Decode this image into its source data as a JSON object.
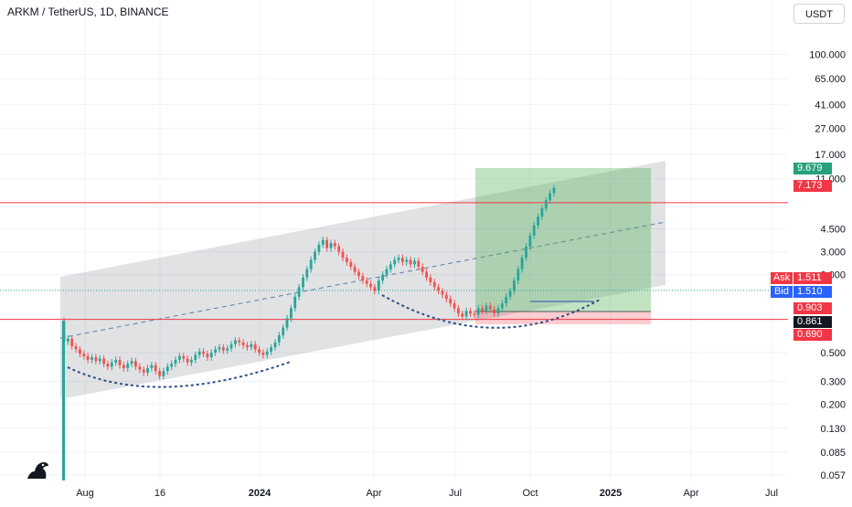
{
  "header": {
    "symbol_title": "ARKM / TetherUS, 1D, BINANCE",
    "currency": "USDT"
  },
  "price_axis": {
    "labels": [
      "100.000",
      "65.000",
      "41.000",
      "27.000",
      "17.000",
      "11.000",
      "4.500",
      "3.000",
      "2.000",
      "0.500",
      "0.300",
      "0.200",
      "0.130",
      "0.085",
      "0.057"
    ]
  },
  "time_axis": {
    "labels": [
      {
        "text": "Aug",
        "bold": false
      },
      {
        "text": "16",
        "bold": false
      },
      {
        "text": "2024",
        "bold": true
      },
      {
        "text": "Apr",
        "bold": false
      },
      {
        "text": "Jul",
        "bold": false
      },
      {
        "text": "Oct",
        "bold": false
      },
      {
        "text": "2025",
        "bold": true
      },
      {
        "text": "Apr",
        "bold": false
      },
      {
        "text": "Jul",
        "bold": false
      }
    ]
  },
  "price_tags": {
    "target": {
      "text": "9.679",
      "color": "#26a17b"
    },
    "resistance": {
      "text": "7.173",
      "color": "#f23645"
    },
    "ask_label": "Ask",
    "ask": {
      "text": "1.511",
      "color": "#f23645"
    },
    "bid_label": "Bid",
    "bid": {
      "text": "1.510",
      "color": "#2962ff"
    },
    "support": {
      "text": "0.903",
      "color": "#f23645"
    },
    "last": {
      "text": "0.861",
      "color": "#131722"
    },
    "stop": {
      "text": "0.690",
      "color": "#f23645"
    }
  },
  "chart_data": {
    "type": "candlestick",
    "title": "ARKM / TetherUS, 1D, BINANCE",
    "yscale": "log",
    "ylim": [
      0.05,
      100
    ],
    "x_ticks": [
      "Aug",
      "16",
      "2024",
      "Apr",
      "Jul",
      "Oct",
      "2025",
      "Apr",
      "Jul"
    ],
    "y_ticks": [
      100,
      65,
      41,
      27,
      17,
      11,
      4.5,
      3,
      2,
      0.5,
      0.3,
      0.2,
      0.13,
      0.085,
      0.057
    ],
    "horizontal_lines": [
      7.173,
      0.903
    ],
    "position": {
      "target": 9.679,
      "entry": 0.861,
      "stop": 0.69
    },
    "close_series": [
      0.61,
      0.64,
      0.56,
      0.53,
      0.49,
      0.47,
      0.44,
      0.46,
      0.43,
      0.45,
      0.41,
      0.39,
      0.42,
      0.44,
      0.4,
      0.38,
      0.41,
      0.43,
      0.39,
      0.37,
      0.35,
      0.38,
      0.4,
      0.36,
      0.33,
      0.36,
      0.39,
      0.41,
      0.44,
      0.47,
      0.45,
      0.42,
      0.44,
      0.48,
      0.51,
      0.49,
      0.46,
      0.5,
      0.53,
      0.55,
      0.52,
      0.54,
      0.58,
      0.62,
      0.6,
      0.57,
      0.55,
      0.58,
      0.53,
      0.5,
      0.48,
      0.51,
      0.55,
      0.6,
      0.68,
      0.78,
      0.92,
      1.1,
      1.35,
      1.6,
      1.9,
      2.2,
      2.6,
      3.0,
      3.4,
      3.7,
      3.2,
      3.5,
      3.3,
      3.0,
      2.7,
      2.5,
      2.3,
      2.1,
      1.95,
      1.8,
      1.7,
      1.6,
      1.5,
      1.8,
      2.0,
      2.2,
      2.4,
      2.6,
      2.7,
      2.5,
      2.6,
      2.4,
      2.55,
      2.3,
      2.1,
      1.9,
      1.75,
      1.6,
      1.5,
      1.4,
      1.3,
      1.2,
      1.1,
      1.0,
      0.95,
      1.05,
      1.0,
      0.98,
      1.1,
      1.05,
      1.15,
      1.08,
      1.0,
      1.1,
      1.2,
      1.35,
      1.5,
      1.8,
      2.2,
      2.7,
      3.3,
      4.0,
      4.8,
      5.6,
      6.5,
      7.5,
      8.5,
      9.3
    ]
  }
}
